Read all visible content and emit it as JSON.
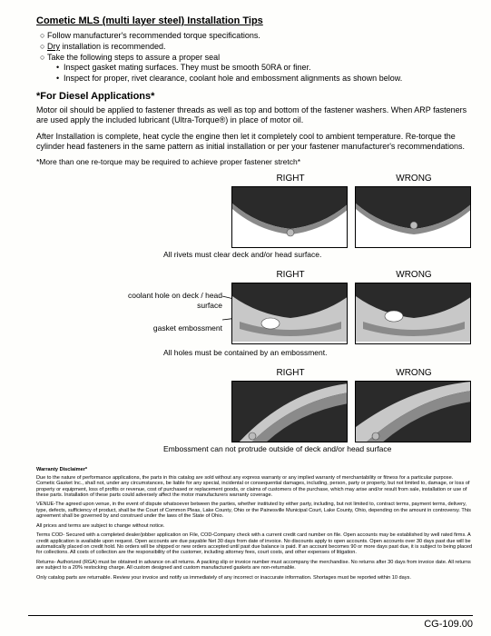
{
  "title": "Cometic MLS (multi layer steel) Installation Tips",
  "bullets": [
    "Follow manufacturer's recommended torque specifications.",
    "<span class='underline'>Dry</span> installation is recommended.",
    "Take the following steps to assure a proper seal"
  ],
  "sub_bullets": [
    "Inspect gasket mating surfaces.  They must be smooth 50RA or finer.",
    "Inspect for proper, rivet clearance, coolant hole and embossment alignments as shown below."
  ],
  "diesel_head": "*For Diesel Applications*",
  "diesel_p1": "Motor oil should be applied to fastener threads as well as top and bottom of the fastener washers. When ARP fasteners are used apply the included lubricant (Ultra-Torque®) in place of motor oil.",
  "diesel_p2": "After Installation is complete, heat cycle the engine then let it completely cool to ambient temperature. Re-torque the cylinder head fasteners in the same pattern as initial installation or per your fastener manufacturer's recommendations.",
  "retorque_note": "*More than one re-torque may be required to achieve proper fastener stretch*",
  "labels": {
    "right": "RIGHT",
    "wrong": "WRONG"
  },
  "side_labels": {
    "coolant": "coolant hole on deck / head surface",
    "emboss": "gasket embossment"
  },
  "captions": {
    "c1": "All rivets must clear deck and/or head surface.",
    "c2": "All holes must be contained by an embossment.",
    "c3": "Embossment can not protrude outside of deck and/or head surface"
  },
  "fineprint": {
    "head": "Warranty Disclaimer*",
    "p1": "Due to the nature of performance applications, the parts in this catalog are sold without any express warranty or any implied warranty of merchantability or fitness for a particular purpose.  Cometic Gasket Inc., shall not, under any circumstances, be liable for any special, incidental or consequential damages, including, person, party or property, but not limited to, damage, or loss of property or equipment, loss of profits or revenue, cost of purchased or replacement goods, or claims of customers of the purchase, which may arise and/or result from sale, installation or use of these parts.  Installation of these parts could adversely affect the motor manufacturers warranty coverage.",
    "p2": "VENUE-The agreed upon venue, in the event of dispute whatsoever between the parties, whether instituted by either party, including, but not limited to, contract terms, payment terms, delivery, type, defects, sufficiency of product, shall be the Court of Common Pleas, Lake County, Ohio or the Painesville Municipal Court, Lake County, Ohio, depending on the amount in controversy. This agreement shall be governed by and construed under the laws of the State of Ohio.",
    "p3": "All prices and terms are subject to change without notice.",
    "p4": "Terms COD- Secured with a completed dealer/jobber application on File, COD-Company check with a current credit card number on file.  Open accounts may be established by well rated firms.  A credit application is available upon request.  Open accounts are due payable Net 30 days from date of invoice.  No discounts apply to open accounts.  Open accounts over 30 days past due will be automatically placed on credit hold.  No orders will be shipped or new orders accepted until past due balance is paid.  If an account becomes 90 or more days past due, it is subject to being placed for collections.  All costs of collection are the responsibility of the customer, including attorney fees, court costs, and other expenses of litigation.",
    "p5": "Returns- Authorized (RGA) must be obtained in advance on all returns.  A packing slip or invoice number must accompany the merchandise.  No returns after 30 days from invoice date.  All returns are subject to a 20% restocking charge.  All custom designed and custom manufactured gaskets are non-returnable.",
    "p6": "Only catalog parts are returnable. Review your invoice and notify us immediately of any incorrect or inaccurate information.  Shortages must be reported within 10 days."
  },
  "page_code": "CG-109.00"
}
